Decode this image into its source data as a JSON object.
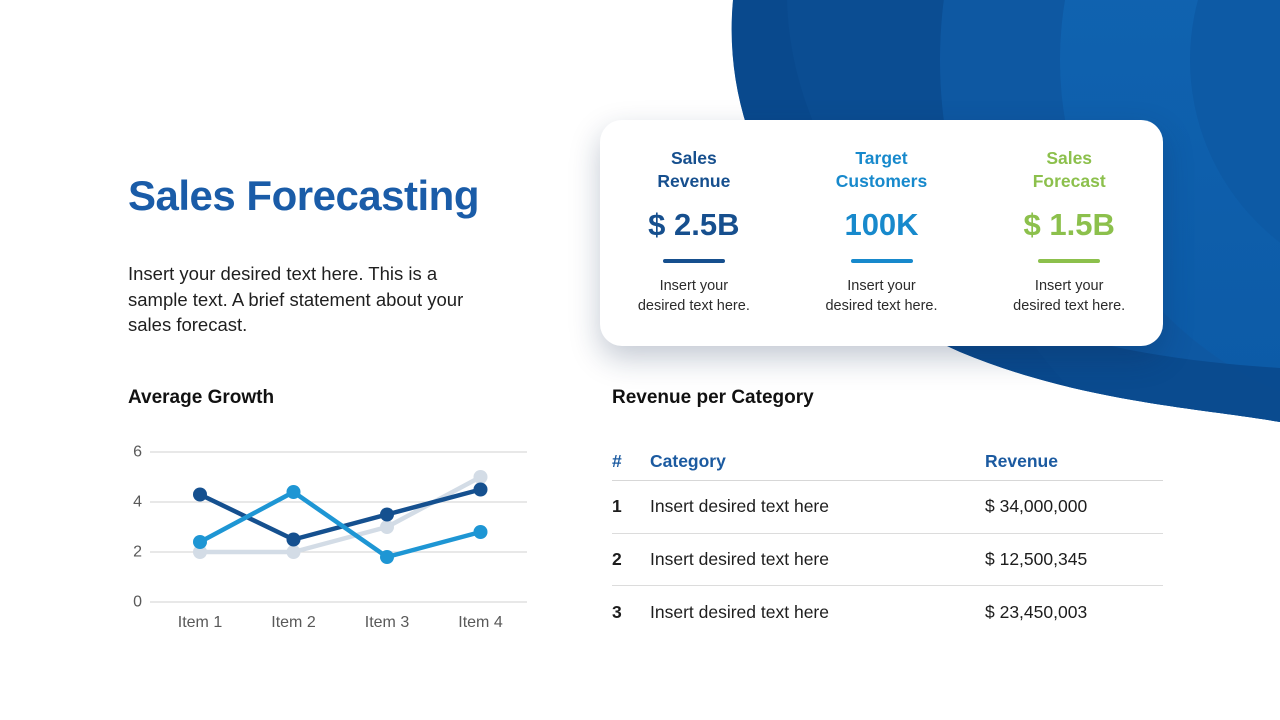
{
  "slide": {
    "title": "Sales Forecasting",
    "description": "Insert your desired text here. This is a sample text. A brief statement about your sales forecast."
  },
  "stats": {
    "items": [
      {
        "label": "Sales\nRevenue",
        "value": "$ 2.5B",
        "caption": "Insert your\ndesired text here.",
        "color": "#164F8E"
      },
      {
        "label": "Target\nCustomers",
        "value": "100K",
        "caption": "Insert your\ndesired text here.",
        "color": "#1789CC"
      },
      {
        "label": "Sales\nForecast",
        "value": "$ 1.5B",
        "caption": "Insert your\ndesired text here.",
        "color": "#8CC04C"
      }
    ]
  },
  "chart_data": [
    {
      "type": "line",
      "title": "Average Growth",
      "categories": [
        "Item 1",
        "Item 2",
        "Item 3",
        "Item 4"
      ],
      "series": [
        {
          "name": "light-gray-series",
          "color": "#D3DCE6",
          "values": [
            2.0,
            2.0,
            3.0,
            5.0
          ]
        },
        {
          "name": "dark-blue-series",
          "color": "#15508F",
          "values": [
            4.3,
            2.5,
            3.5,
            4.5
          ]
        },
        {
          "name": "bright-blue-series",
          "color": "#1E96D4",
          "values": [
            2.4,
            4.4,
            1.8,
            2.8
          ]
        }
      ],
      "ylim": [
        0,
        6
      ],
      "yticks": [
        0,
        2,
        4,
        6
      ],
      "grid": "horizontal",
      "legend": "none",
      "xlabel": "",
      "ylabel": ""
    },
    {
      "type": "table",
      "title": "Revenue per Category",
      "headers": [
        "#",
        "Category",
        "Revenue"
      ],
      "rows": [
        [
          "1",
          "Insert desired text here",
          "$ 34,000,000"
        ],
        [
          "2",
          "Insert desired text here",
          "$ 12,500,345"
        ],
        [
          "3",
          "Insert desired text here",
          "$ 23,450,003"
        ]
      ]
    }
  ],
  "colors": {
    "title_blue": "#1A5CA8",
    "table_header_blue": "#1B5AA0",
    "blob_base": "#0B4D92",
    "blob_ring_outer": "#0E58A2",
    "blob_ring_mid_top": "#1268B6",
    "blob_ring_mid_bottom": "#0C5AA6",
    "blob_ring_inner": "#0D5AA5",
    "blob_rim": "#09498C",
    "grid_gray": "#D9D9D9",
    "axis_text_gray": "#595959"
  }
}
